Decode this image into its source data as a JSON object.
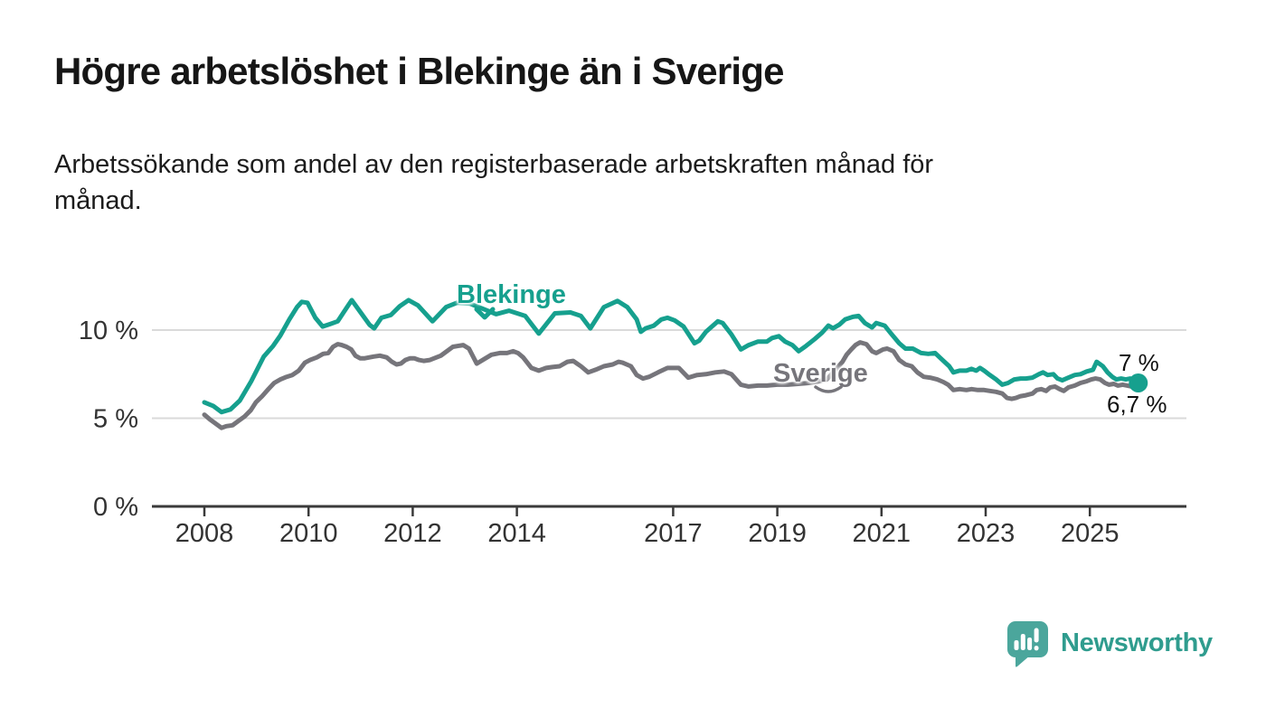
{
  "header": {
    "title": "Högre arbetslöshet i Blekinge än i Sverige",
    "subtitle": "Arbetssökande som andel av den registerbaserade arbetskraften månad för\nmånad."
  },
  "chart_data": {
    "type": "line",
    "unit": "%",
    "xlim": [
      2008,
      2026.2
    ],
    "ylim": [
      0,
      12.5
    ],
    "grid": "horizontal",
    "x_ticks": [
      "2008",
      "2010",
      "2012",
      "2014",
      "2017",
      "2019",
      "2021",
      "2023",
      "2025"
    ],
    "x_tick_years": [
      2008,
      2010,
      2012,
      2014,
      2017,
      2019,
      2021,
      2023,
      2025
    ],
    "y_ticks": [
      {
        "value": 0,
        "label": "0 %"
      },
      {
        "value": 5,
        "label": "5 %"
      },
      {
        "value": 10,
        "label": "10 %"
      }
    ],
    "series": [
      {
        "name": "Blekinge",
        "color": "#16a08e",
        "end_value_label": "7 %",
        "end_dot": true,
        "points": [
          [
            2008.0,
            5.9
          ],
          [
            2008.17,
            5.7
          ],
          [
            2008.33,
            5.35
          ],
          [
            2008.5,
            5.5
          ],
          [
            2008.68,
            6.0
          ],
          [
            2008.9,
            7.1
          ],
          [
            2009.14,
            8.5
          ],
          [
            2009.32,
            9.1
          ],
          [
            2009.46,
            9.7
          ],
          [
            2009.63,
            10.6
          ],
          [
            2009.78,
            11.3
          ],
          [
            2009.87,
            11.6
          ],
          [
            2009.98,
            11.55
          ],
          [
            2010.13,
            10.7
          ],
          [
            2010.27,
            10.2
          ],
          [
            2010.42,
            10.35
          ],
          [
            2010.56,
            10.5
          ],
          [
            2010.74,
            11.3
          ],
          [
            2010.83,
            11.7
          ],
          [
            2011.0,
            11.0
          ],
          [
            2011.17,
            10.3
          ],
          [
            2011.26,
            10.1
          ],
          [
            2011.4,
            10.7
          ],
          [
            2011.58,
            10.85
          ],
          [
            2011.75,
            11.35
          ],
          [
            2011.92,
            11.7
          ],
          [
            2012.1,
            11.4
          ],
          [
            2012.38,
            10.5
          ],
          [
            2012.64,
            11.3
          ],
          [
            2012.85,
            11.55
          ],
          [
            2013.1,
            11.5
          ],
          [
            2013.35,
            11.2
          ],
          [
            2013.6,
            10.9
          ],
          [
            2013.85,
            11.1
          ],
          [
            2014.16,
            10.8
          ],
          [
            2014.42,
            9.8
          ],
          [
            2014.73,
            10.95
          ],
          [
            2015.03,
            11.0
          ],
          [
            2015.23,
            10.8
          ],
          [
            2015.41,
            10.1
          ],
          [
            2015.67,
            11.3
          ],
          [
            2015.93,
            11.65
          ],
          [
            2016.12,
            11.3
          ],
          [
            2016.3,
            10.6
          ],
          [
            2016.38,
            9.9
          ],
          [
            2016.47,
            10.1
          ],
          [
            2016.63,
            10.25
          ],
          [
            2016.77,
            10.6
          ],
          [
            2016.89,
            10.7
          ],
          [
            2017.03,
            10.55
          ],
          [
            2017.2,
            10.2
          ],
          [
            2017.41,
            9.25
          ],
          [
            2017.5,
            9.4
          ],
          [
            2017.63,
            9.9
          ],
          [
            2017.86,
            10.5
          ],
          [
            2017.95,
            10.4
          ],
          [
            2018.12,
            9.75
          ],
          [
            2018.3,
            8.9
          ],
          [
            2018.45,
            9.15
          ],
          [
            2018.63,
            9.35
          ],
          [
            2018.8,
            9.35
          ],
          [
            2018.9,
            9.55
          ],
          [
            2019.03,
            9.65
          ],
          [
            2019.15,
            9.35
          ],
          [
            2019.29,
            9.15
          ],
          [
            2019.41,
            8.8
          ],
          [
            2019.55,
            9.1
          ],
          [
            2019.72,
            9.5
          ],
          [
            2019.86,
            9.85
          ],
          [
            2019.98,
            10.25
          ],
          [
            2020.07,
            10.1
          ],
          [
            2020.19,
            10.3
          ],
          [
            2020.3,
            10.6
          ],
          [
            2020.45,
            10.75
          ],
          [
            2020.56,
            10.8
          ],
          [
            2020.68,
            10.4
          ],
          [
            2020.82,
            10.15
          ],
          [
            2020.9,
            10.4
          ],
          [
            2021.06,
            10.25
          ],
          [
            2021.17,
            9.85
          ],
          [
            2021.34,
            9.25
          ],
          [
            2021.46,
            8.95
          ],
          [
            2021.6,
            8.95
          ],
          [
            2021.76,
            8.7
          ],
          [
            2021.9,
            8.65
          ],
          [
            2022.03,
            8.7
          ],
          [
            2022.17,
            8.3
          ],
          [
            2022.3,
            7.95
          ],
          [
            2022.38,
            7.6
          ],
          [
            2022.5,
            7.7
          ],
          [
            2022.63,
            7.7
          ],
          [
            2022.73,
            7.8
          ],
          [
            2022.82,
            7.7
          ],
          [
            2022.89,
            7.85
          ],
          [
            2022.97,
            7.7
          ],
          [
            2023.08,
            7.45
          ],
          [
            2023.2,
            7.2
          ],
          [
            2023.32,
            6.9
          ],
          [
            2023.43,
            7.0
          ],
          [
            2023.55,
            7.2
          ],
          [
            2023.67,
            7.25
          ],
          [
            2023.77,
            7.25
          ],
          [
            2023.9,
            7.3
          ],
          [
            2024.02,
            7.5
          ],
          [
            2024.1,
            7.6
          ],
          [
            2024.19,
            7.45
          ],
          [
            2024.3,
            7.5
          ],
          [
            2024.38,
            7.25
          ],
          [
            2024.47,
            7.15
          ],
          [
            2024.59,
            7.3
          ],
          [
            2024.71,
            7.45
          ],
          [
            2024.82,
            7.5
          ],
          [
            2024.94,
            7.65
          ],
          [
            2025.06,
            7.75
          ],
          [
            2025.13,
            8.2
          ],
          [
            2025.25,
            7.95
          ],
          [
            2025.34,
            7.6
          ],
          [
            2025.43,
            7.35
          ],
          [
            2025.51,
            7.2
          ],
          [
            2025.6,
            7.25
          ],
          [
            2025.69,
            7.2
          ],
          [
            2025.78,
            7.25
          ],
          [
            2025.86,
            7.1
          ],
          [
            2025.93,
            7.0
          ]
        ]
      },
      {
        "name": "Sverige",
        "color": "#76757b",
        "end_value_label": "6,7 %",
        "end_dot": false,
        "points": [
          [
            2008.0,
            5.2
          ],
          [
            2008.12,
            4.9
          ],
          [
            2008.33,
            4.45
          ],
          [
            2008.42,
            4.55
          ],
          [
            2008.54,
            4.6
          ],
          [
            2008.68,
            4.9
          ],
          [
            2008.77,
            5.1
          ],
          [
            2008.89,
            5.45
          ],
          [
            2008.99,
            5.9
          ],
          [
            2009.11,
            6.25
          ],
          [
            2009.23,
            6.65
          ],
          [
            2009.34,
            7.0
          ],
          [
            2009.46,
            7.2
          ],
          [
            2009.58,
            7.35
          ],
          [
            2009.69,
            7.45
          ],
          [
            2009.81,
            7.7
          ],
          [
            2009.93,
            8.15
          ],
          [
            2010.03,
            8.3
          ],
          [
            2010.16,
            8.45
          ],
          [
            2010.28,
            8.65
          ],
          [
            2010.38,
            8.7
          ],
          [
            2010.47,
            9.05
          ],
          [
            2010.56,
            9.2
          ],
          [
            2010.64,
            9.15
          ],
          [
            2010.73,
            9.05
          ],
          [
            2010.82,
            8.9
          ],
          [
            2010.9,
            8.55
          ],
          [
            2010.99,
            8.4
          ],
          [
            2011.08,
            8.4
          ],
          [
            2011.17,
            8.45
          ],
          [
            2011.25,
            8.5
          ],
          [
            2011.37,
            8.55
          ],
          [
            2011.5,
            8.45
          ],
          [
            2011.6,
            8.2
          ],
          [
            2011.69,
            8.05
          ],
          [
            2011.77,
            8.1
          ],
          [
            2011.86,
            8.3
          ],
          [
            2011.95,
            8.4
          ],
          [
            2012.03,
            8.4
          ],
          [
            2012.12,
            8.3
          ],
          [
            2012.21,
            8.25
          ],
          [
            2012.33,
            8.3
          ],
          [
            2012.54,
            8.55
          ],
          [
            2012.77,
            9.05
          ],
          [
            2012.97,
            9.15
          ],
          [
            2013.08,
            8.95
          ],
          [
            2013.23,
            8.1
          ],
          [
            2013.37,
            8.35
          ],
          [
            2013.51,
            8.6
          ],
          [
            2013.67,
            8.7
          ],
          [
            2013.81,
            8.7
          ],
          [
            2013.93,
            8.8
          ],
          [
            2014.02,
            8.7
          ],
          [
            2014.12,
            8.45
          ],
          [
            2014.28,
            7.85
          ],
          [
            2014.42,
            7.7
          ],
          [
            2014.56,
            7.85
          ],
          [
            2014.68,
            7.9
          ],
          [
            2014.82,
            7.95
          ],
          [
            2014.97,
            8.2
          ],
          [
            2015.08,
            8.25
          ],
          [
            2015.23,
            7.95
          ],
          [
            2015.37,
            7.6
          ],
          [
            2015.51,
            7.75
          ],
          [
            2015.67,
            7.95
          ],
          [
            2015.84,
            8.05
          ],
          [
            2015.95,
            8.2
          ],
          [
            2016.03,
            8.15
          ],
          [
            2016.19,
            7.95
          ],
          [
            2016.3,
            7.45
          ],
          [
            2016.42,
            7.25
          ],
          [
            2016.54,
            7.35
          ],
          [
            2016.71,
            7.6
          ],
          [
            2016.89,
            7.85
          ],
          [
            2017.11,
            7.85
          ],
          [
            2017.29,
            7.3
          ],
          [
            2017.46,
            7.45
          ],
          [
            2017.63,
            7.5
          ],
          [
            2017.81,
            7.6
          ],
          [
            2017.98,
            7.65
          ],
          [
            2018.12,
            7.5
          ],
          [
            2018.3,
            6.9
          ],
          [
            2018.45,
            6.8
          ],
          [
            2018.63,
            6.85
          ],
          [
            2018.8,
            6.85
          ],
          [
            2019.0,
            6.9
          ],
          [
            2019.2,
            6.9
          ],
          [
            2019.4,
            6.95
          ],
          [
            2019.6,
            7.0
          ],
          [
            2019.8,
            7.1
          ],
          [
            2019.95,
            7.2
          ],
          [
            2020.1,
            7.7
          ],
          [
            2020.25,
            8.2
          ],
          [
            2020.33,
            8.6
          ],
          [
            2020.42,
            8.9
          ],
          [
            2020.5,
            9.15
          ],
          [
            2020.59,
            9.3
          ],
          [
            2020.71,
            9.2
          ],
          [
            2020.82,
            8.8
          ],
          [
            2020.9,
            8.7
          ],
          [
            2021.03,
            8.9
          ],
          [
            2021.11,
            8.95
          ],
          [
            2021.23,
            8.8
          ],
          [
            2021.34,
            8.3
          ],
          [
            2021.46,
            8.05
          ],
          [
            2021.58,
            7.95
          ],
          [
            2021.69,
            7.6
          ],
          [
            2021.81,
            7.35
          ],
          [
            2021.93,
            7.3
          ],
          [
            2022.07,
            7.2
          ],
          [
            2022.19,
            7.05
          ],
          [
            2022.28,
            6.9
          ],
          [
            2022.38,
            6.6
          ],
          [
            2022.5,
            6.65
          ],
          [
            2022.63,
            6.6
          ],
          [
            2022.73,
            6.65
          ],
          [
            2022.85,
            6.6
          ],
          [
            2022.97,
            6.6
          ],
          [
            2023.08,
            6.55
          ],
          [
            2023.2,
            6.5
          ],
          [
            2023.32,
            6.4
          ],
          [
            2023.41,
            6.15
          ],
          [
            2023.5,
            6.1
          ],
          [
            2023.58,
            6.15
          ],
          [
            2023.67,
            6.25
          ],
          [
            2023.77,
            6.3
          ],
          [
            2023.9,
            6.4
          ],
          [
            2023.98,
            6.6
          ],
          [
            2024.07,
            6.65
          ],
          [
            2024.16,
            6.55
          ],
          [
            2024.24,
            6.75
          ],
          [
            2024.33,
            6.8
          ],
          [
            2024.42,
            6.65
          ],
          [
            2024.5,
            6.55
          ],
          [
            2024.59,
            6.75
          ],
          [
            2024.71,
            6.85
          ],
          [
            2024.82,
            7.0
          ],
          [
            2024.94,
            7.1
          ],
          [
            2025.03,
            7.2
          ],
          [
            2025.11,
            7.25
          ],
          [
            2025.2,
            7.2
          ],
          [
            2025.29,
            7.0
          ],
          [
            2025.37,
            6.9
          ],
          [
            2025.46,
            6.95
          ],
          [
            2025.54,
            6.85
          ],
          [
            2025.63,
            6.9
          ],
          [
            2025.72,
            6.85
          ],
          [
            2025.8,
            6.8
          ],
          [
            2025.89,
            6.7
          ]
        ]
      }
    ]
  },
  "labels": {
    "blekinge": "Blekinge",
    "sverige": "Sverige",
    "end_blekinge": "7 %",
    "end_sverige": "6,7 %"
  },
  "footer": {
    "brand": "Newsworthy"
  },
  "colors": {
    "blekinge": "#16a08e",
    "sverige": "#76757b",
    "axis": "#3a3a3a",
    "gridline": "#dadada",
    "brand_icon": "#4ba69c",
    "brand_text": "#2f9c8e"
  }
}
